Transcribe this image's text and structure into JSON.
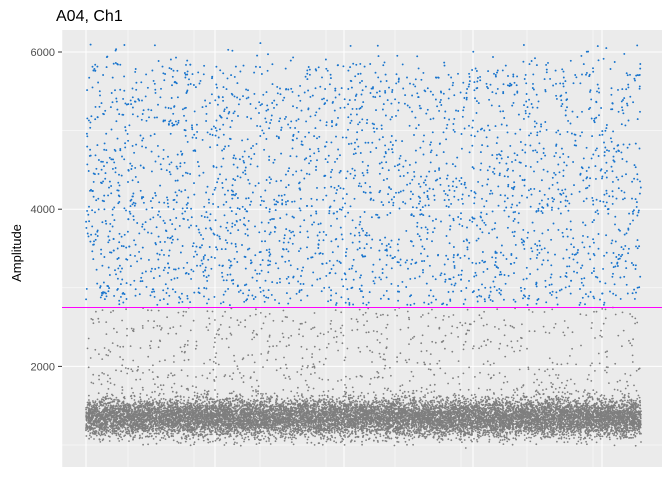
{
  "chart_data": {
    "type": "scatter",
    "title": "A04, Ch1",
    "xlabel": "",
    "ylabel": "Amplitude",
    "ylim": [
      720,
      6280
    ],
    "xlim": [
      0,
      1
    ],
    "yticks": [
      2000,
      4000,
      6000
    ],
    "y_minor_gridlines": [
      1000,
      3000,
      5000
    ],
    "grid": true,
    "panel_background": "#ebebeb",
    "threshold": {
      "value": 2750,
      "color": "#ff00ff"
    },
    "series": [
      {
        "color": "#1874cd",
        "y_range": [
          2750,
          6130
        ],
        "approx_points": 2800,
        "shown": "positive droplets above threshold"
      },
      {
        "color": "#7f7f7f",
        "y_range": [
          950,
          2750
        ],
        "approx_points": 14000,
        "dense_band": [
          1050,
          1650
        ],
        "shown": "negative droplets below threshold"
      }
    ]
  }
}
